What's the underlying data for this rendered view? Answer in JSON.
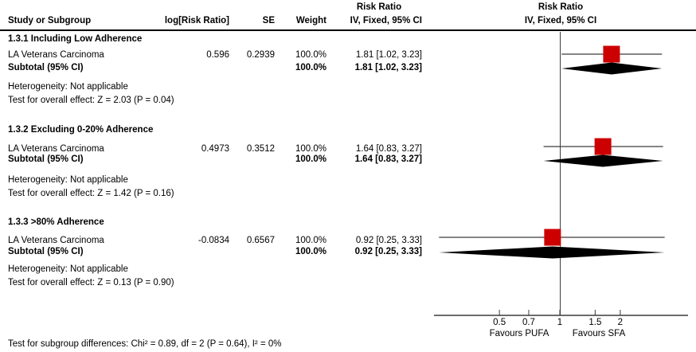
{
  "header": {
    "stat_effect_title": "Risk Ratio",
    "plot_effect_title": "Risk Ratio",
    "col_study": "Study or Subgroup",
    "col_log_rr": "log[Risk Ratio]",
    "col_se": "SE",
    "col_weight": "Weight",
    "col_ci": "IV, Fixed, 95% CI",
    "plot_method": "IV, Fixed, 95% CI"
  },
  "sections": [
    {
      "title": "1.3.1 Including Low Adherence",
      "study": {
        "name": "LA Veterans Carcinoma",
        "logrr": "0.596",
        "se": "0.2939",
        "weight": "100.0%",
        "ci_text": "1.81 [1.02, 3.23]"
      },
      "subtotal": {
        "label": "Subtotal (95% CI)",
        "weight": "100.0%",
        "ci_text": "1.81 [1.02, 3.23]"
      },
      "heterogeneity": "Heterogeneity: Not applicable",
      "overall_effect": "Test for overall effect: Z = 2.03 (P = 0.04)"
    },
    {
      "title": "1.3.2 Excluding 0-20% Adherence",
      "study": {
        "name": "LA Veterans Carcinoma",
        "logrr": "0.4973",
        "se": "0.3512",
        "weight": "100.0%",
        "ci_text": "1.64 [0.83, 3.27]"
      },
      "subtotal": {
        "label": "Subtotal (95% CI)",
        "weight": "100.0%",
        "ci_text": "1.64 [0.83, 3.27]"
      },
      "heterogeneity": "Heterogeneity: Not applicable",
      "overall_effect": "Test for overall effect: Z = 1.42 (P = 0.16)"
    },
    {
      "title": "1.3.3 >80% Adherence",
      "study": {
        "name": "LA Veterans Carcinoma",
        "logrr": "-0.0834",
        "se": "0.6567",
        "weight": "100.0%",
        "ci_text": "0.92 [0.25, 3.33]"
      },
      "subtotal": {
        "label": "Subtotal (95% CI)",
        "weight": "100.0%",
        "ci_text": "0.92 [0.25, 3.33]"
      },
      "heterogeneity": "Heterogeneity: Not applicable",
      "overall_effect": "Test for overall effect: Z = 0.13 (P = 0.90)"
    }
  ],
  "axis": {
    "tick_labels": [
      "0.5",
      "0.7",
      "1",
      "1.5",
      "2"
    ],
    "favours_left": "Favours PUFA",
    "favours_right": "Favours SFA"
  },
  "footer": {
    "subgroup_test": "Test for subgroup differences: Chi² = 0.89, df = 2 (P = 0.64), I² = 0%"
  },
  "chart_data": {
    "type": "forest",
    "x_scale": "log",
    "effect_measure": "Risk Ratio",
    "analysis_method": "IV, Fixed, 95% CI",
    "x_ticks": [
      0.5,
      0.7,
      1,
      1.5,
      2
    ],
    "null_value": 1,
    "x_range_drawn": [
      0.24,
      4.35
    ],
    "axis_labels": {
      "left": "Favours PUFA",
      "right": "Favours SFA"
    },
    "marker_color": "#CC0000",
    "line_color": "#3c3c3c",
    "diamond_color": "#000000",
    "subgroups": [
      {
        "name": "1.3.1 Including Low Adherence",
        "studies": [
          {
            "study": "LA Veterans Carcinoma",
            "log_rr": 0.596,
            "se": 0.2939,
            "weight_pct": 100.0,
            "rr": 1.81,
            "ci_low": 1.02,
            "ci_high": 3.23
          }
        ],
        "subtotal": {
          "rr": 1.81,
          "ci_low": 1.02,
          "ci_high": 3.23,
          "weight_pct": 100.0
        },
        "heterogeneity": "Not applicable",
        "overall_effect": {
          "z": 2.03,
          "p": 0.04
        }
      },
      {
        "name": "1.3.2 Excluding 0-20% Adherence",
        "studies": [
          {
            "study": "LA Veterans Carcinoma",
            "log_rr": 0.4973,
            "se": 0.3512,
            "weight_pct": 100.0,
            "rr": 1.64,
            "ci_low": 0.83,
            "ci_high": 3.27
          }
        ],
        "subtotal": {
          "rr": 1.64,
          "ci_low": 0.83,
          "ci_high": 3.27,
          "weight_pct": 100.0
        },
        "heterogeneity": "Not applicable",
        "overall_effect": {
          "z": 1.42,
          "p": 0.16
        }
      },
      {
        "name": "1.3.3 >80% Adherence",
        "studies": [
          {
            "study": "LA Veterans Carcinoma",
            "log_rr": -0.0834,
            "se": 0.6567,
            "weight_pct": 100.0,
            "rr": 0.92,
            "ci_low": 0.25,
            "ci_high": 3.33
          }
        ],
        "subtotal": {
          "rr": 0.92,
          "ci_low": 0.25,
          "ci_high": 3.33,
          "weight_pct": 100.0
        },
        "heterogeneity": "Not applicable",
        "overall_effect": {
          "z": 0.13,
          "p": 0.9
        }
      }
    ],
    "subgroup_difference_test": {
      "chi2": 0.89,
      "df": 2,
      "p": 0.64,
      "i2_pct": 0
    }
  }
}
